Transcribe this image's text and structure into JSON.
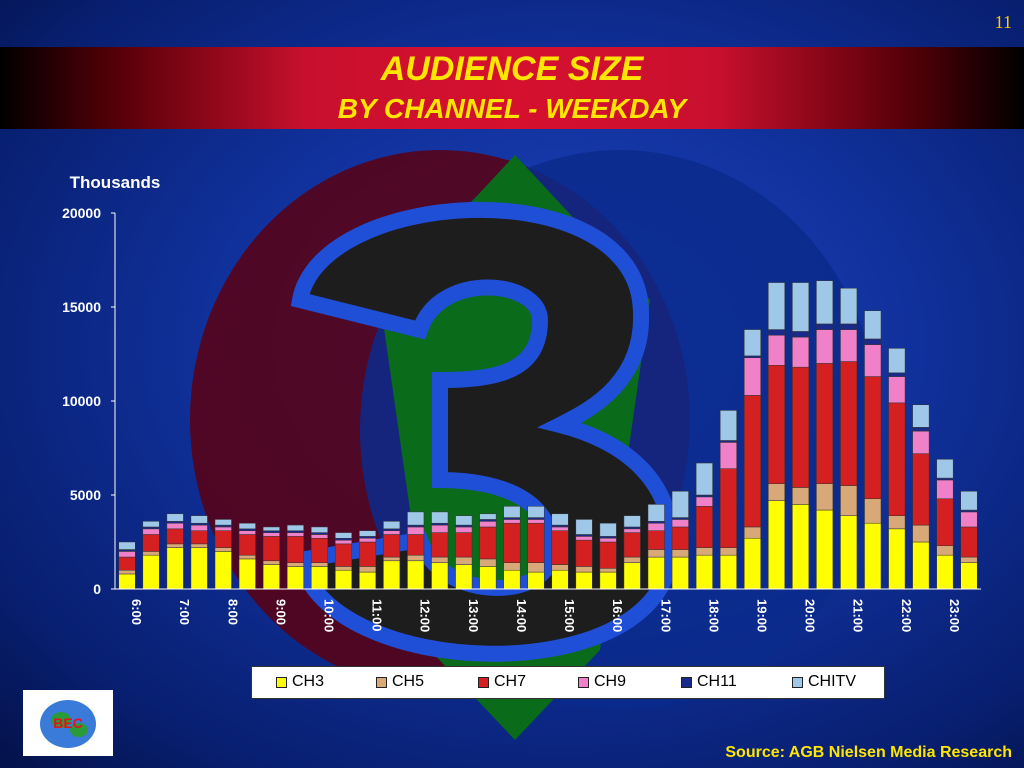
{
  "slide": {
    "page_number": "11",
    "title_line1": "AUDIENCE SIZE",
    "title_line2": "BY CHANNEL - WEEKDAY",
    "source": "Source: AGB Nielsen Media Research"
  },
  "chart_data": {
    "type": "bar",
    "stacked": true,
    "ylabel": "Thousands",
    "ylim": [
      0,
      20000
    ],
    "yticks": [
      0,
      5000,
      10000,
      15000,
      20000
    ],
    "x_tick_labels": [
      "6:00",
      "7:00",
      "8:00",
      "9:00",
      "10:00",
      "11:00",
      "12:00",
      "13:00",
      "14:00",
      "15:00",
      "16:00",
      "17:00",
      "18:00",
      "19:00",
      "20:00",
      "21:00",
      "22:00",
      "23:00"
    ],
    "categories": [
      "6:00",
      "6:30",
      "7:00",
      "7:30",
      "8:00",
      "8:30",
      "9:00",
      "9:30",
      "10:00",
      "10:30",
      "11:00",
      "11:30",
      "12:00",
      "12:30",
      "13:00",
      "13:30",
      "14:00",
      "14:30",
      "15:00",
      "15:30",
      "16:00",
      "16:30",
      "17:00",
      "17:30",
      "18:00",
      "18:30",
      "19:00",
      "19:30",
      "20:00",
      "20:30",
      "21:00",
      "21:30",
      "22:00",
      "22:30",
      "23:00",
      "23:30"
    ],
    "series": [
      {
        "name": "CH3",
        "color": "#ffff00",
        "values": [
          800,
          1800,
          2200,
          2200,
          2000,
          1600,
          1300,
          1200,
          1200,
          1000,
          900,
          1500,
          1500,
          1400,
          1300,
          1200,
          1000,
          900,
          1000,
          900,
          900,
          1400,
          1700,
          1700,
          1800,
          1800,
          2700,
          4700,
          4500,
          4200,
          3900,
          3500,
          3200,
          2500,
          1800,
          1400
        ]
      },
      {
        "name": "CH5",
        "color": "#d9a878",
        "values": [
          200,
          200,
          200,
          200,
          200,
          200,
          200,
          200,
          200,
          200,
          300,
          200,
          300,
          300,
          400,
          400,
          400,
          500,
          300,
          300,
          200,
          300,
          400,
          400,
          400,
          400,
          600,
          900,
          900,
          1400,
          1600,
          1300,
          700,
          900,
          500,
          300
        ]
      },
      {
        "name": "CH7",
        "color": "#d42020",
        "values": [
          700,
          900,
          800,
          700,
          900,
          1100,
          1300,
          1400,
          1300,
          1200,
          1300,
          1200,
          1100,
          1300,
          1300,
          1700,
          2100,
          2100,
          1800,
          1400,
          1400,
          1300,
          1000,
          1200,
          2200,
          4200,
          7000,
          6300,
          6400,
          6400,
          6600,
          6500,
          6000,
          3800,
          2500,
          1600
        ]
      },
      {
        "name": "CH9",
        "color": "#f080c8",
        "values": [
          300,
          300,
          300,
          300,
          200,
          200,
          200,
          200,
          200,
          200,
          200,
          200,
          400,
          400,
          300,
          300,
          200,
          200,
          200,
          200,
          200,
          200,
          400,
          400,
          500,
          1400,
          2000,
          1600,
          1600,
          1800,
          1700,
          1700,
          1400,
          1200,
          1000,
          800
        ]
      },
      {
        "name": "CH11",
        "color": "#1a2a8a",
        "values": [
          100,
          100,
          100,
          100,
          100,
          100,
          100,
          100,
          100,
          100,
          100,
          100,
          100,
          100,
          100,
          100,
          100,
          100,
          100,
          100,
          100,
          100,
          100,
          100,
          100,
          100,
          100,
          300,
          300,
          300,
          300,
          300,
          200,
          200,
          100,
          100
        ]
      },
      {
        "name": "CHITV",
        "color": "#9fc7e8",
        "values": [
          400,
          300,
          400,
          400,
          300,
          300,
          200,
          300,
          300,
          300,
          300,
          400,
          700,
          600,
          500,
          300,
          600,
          600,
          600,
          800,
          700,
          600,
          900,
          1400,
          1700,
          1600,
          1400,
          2500,
          2600,
          2300,
          1900,
          1500,
          1300,
          1200,
          1000,
          1000
        ]
      }
    ],
    "legend_position": "bottom",
    "grid": false
  }
}
